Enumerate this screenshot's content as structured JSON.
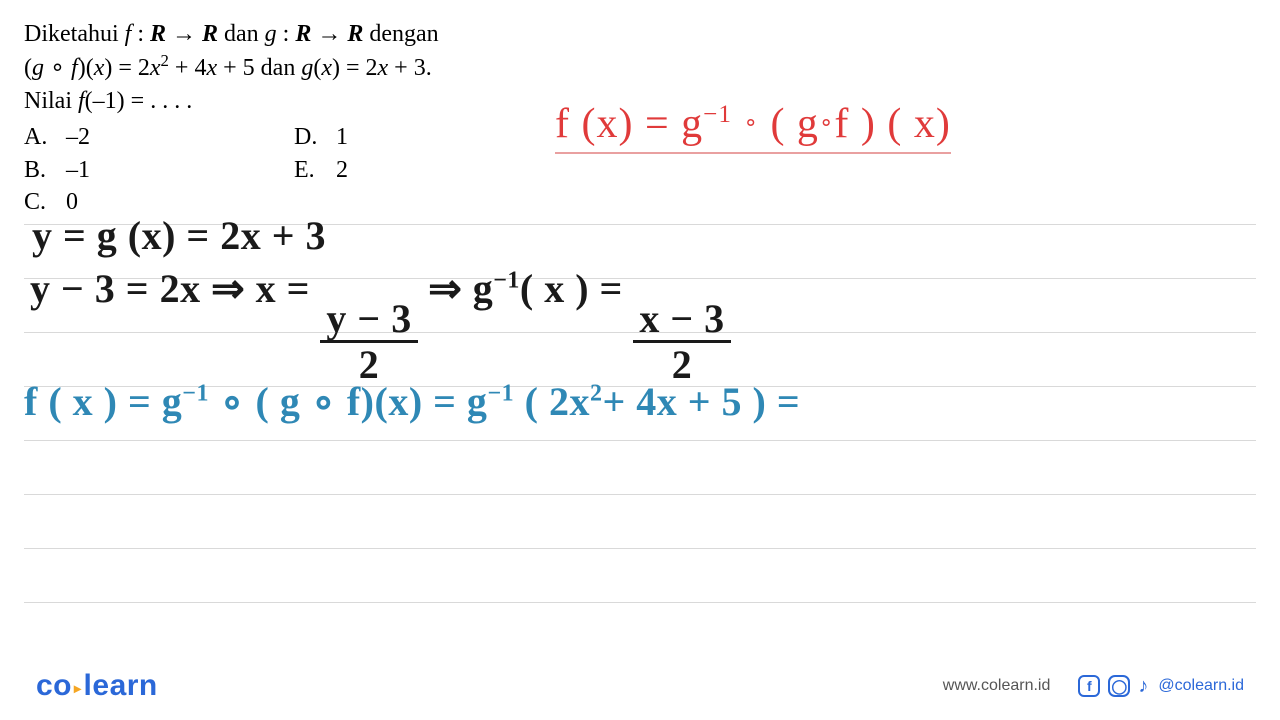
{
  "problem": {
    "line1_pre": "Diketahui ",
    "line1_f": "f",
    "line1_sep1": " : ",
    "line1_R1": "R",
    "line1_arrow1": " → ",
    "line1_R2": "R",
    "line1_dan": " dan ",
    "line1_g": "g",
    "line1_sep2": " : ",
    "line1_R3": "R",
    "line1_arrow2": " → ",
    "line1_R4": "R",
    "line1_post": " dengan",
    "line2": "(g ∘ f)(x) = 2x² + 4x + 5 dan g(x) = 2x + 3.",
    "line2_a": "(",
    "line2_g": "g",
    "line2_circ": " ∘ ",
    "line2_f": "f",
    "line2_b": ")(",
    "line2_x1": "x",
    "line2_c": ") = 2",
    "line2_x2": "x",
    "line2_sq": "2",
    "line2_d": " + 4",
    "line2_x3": "x",
    "line2_e": " + 5 dan ",
    "line2_g2": "g",
    "line2_f2": "(",
    "line2_x4": "x",
    "line2_g3": ") = 2",
    "line2_x5": "x",
    "line2_h": " + 3.",
    "line3_a": "Nilai ",
    "line3_f": "f",
    "line3_b": "(–1) = . . . .",
    "options": {
      "A": "–2",
      "B": "–1",
      "C": "0",
      "D": "1",
      "E": "2"
    }
  },
  "red": {
    "text_a": "f (x) = g",
    "sup": "−1",
    "text_b": " ",
    "circ": "∘",
    "text_c": " ( g",
    "circ2": "∘",
    "text_d": "f ) ( x)"
  },
  "hand": {
    "l1": "y = g (x) = 2x + 3",
    "l2a": "y − 3 = 2x ⇒  x = ",
    "l2_num1": "y − 3",
    "l2_den1": "2",
    "l2b": "  ⇒  g",
    "l2_sup": "−1",
    "l2c": "( x ) = ",
    "l2_num2": "x − 3",
    "l2_den2": "2",
    "l3a": "f ( x ) = g",
    "l3_sup1": "−1",
    "l3b": " ∘ ( g ∘ f)(x) =  g",
    "l3_sup2": "−1",
    "l3c": " ( 2x",
    "l3_sq": "2",
    "l3d": "+ 4x + 5 ) ="
  },
  "rules": {
    "color": "#d9d9d9",
    "positions": [
      224,
      278,
      332,
      386,
      440,
      494,
      548,
      602
    ]
  },
  "footer": {
    "logo_a": "co",
    "logo_b": "learn",
    "url": "www.colearn.id",
    "fb": "f",
    "ig": "◯",
    "tk": "♪",
    "handle": "@colearn.id"
  },
  "colors": {
    "red": "#e03a3a",
    "black": "#1a1a1a",
    "blue": "#2f88b5",
    "brand": "#2b68d8",
    "accent": "#f5a623",
    "rule": "#d9d9d9",
    "bg": "#ffffff"
  }
}
